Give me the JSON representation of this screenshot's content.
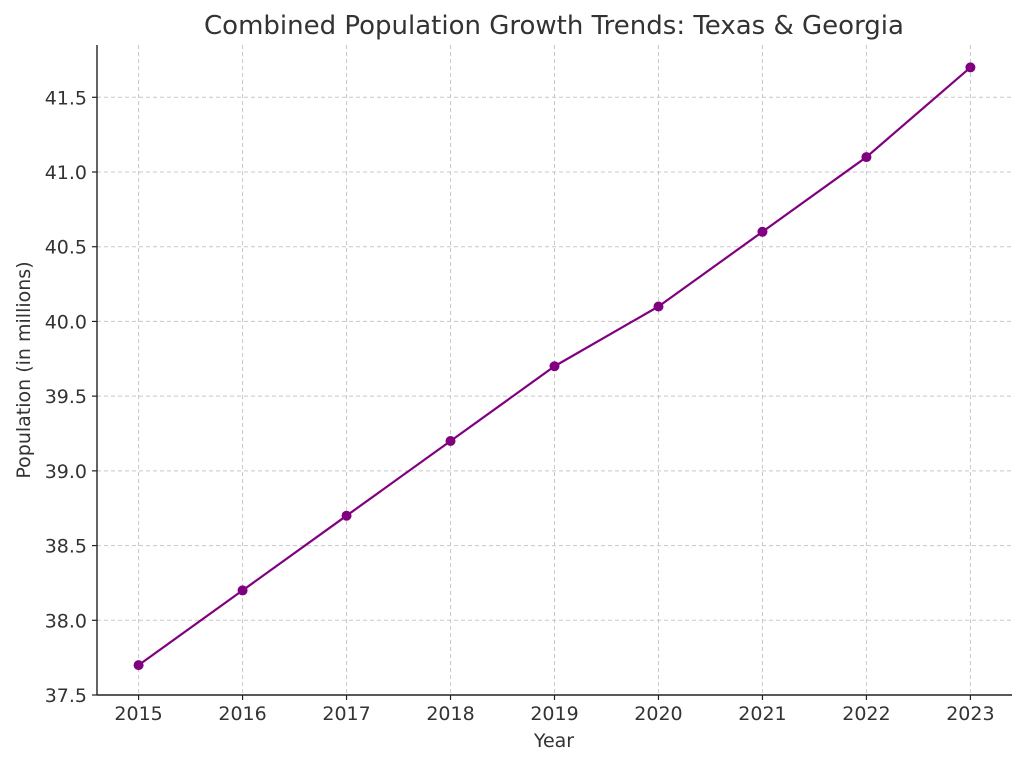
{
  "chart_data": {
    "type": "line",
    "title": "Combined Population Growth Trends: Texas & Georgia",
    "xlabel": "Year",
    "ylabel": "Population (in millions)",
    "x": [
      2015,
      2016,
      2017,
      2018,
      2019,
      2020,
      2021,
      2022,
      2023
    ],
    "series": [
      {
        "values": [
          37.7,
          38.2,
          38.7,
          39.2,
          39.7,
          40.1,
          40.6,
          41.1,
          41.7
        ],
        "color": "#800080",
        "marker": "circle"
      }
    ],
    "xticks": [
      "2015",
      "2016",
      "2017",
      "2018",
      "2019",
      "2020",
      "2021",
      "2022",
      "2023"
    ],
    "yticks": [
      "37.5",
      "38.0",
      "38.5",
      "39.0",
      "39.5",
      "40.0",
      "40.5",
      "41.0",
      "41.5"
    ],
    "ylim": [
      37.5,
      41.85
    ],
    "xlim": [
      2014.6,
      2023.4
    ],
    "grid": true,
    "legend": false
  }
}
